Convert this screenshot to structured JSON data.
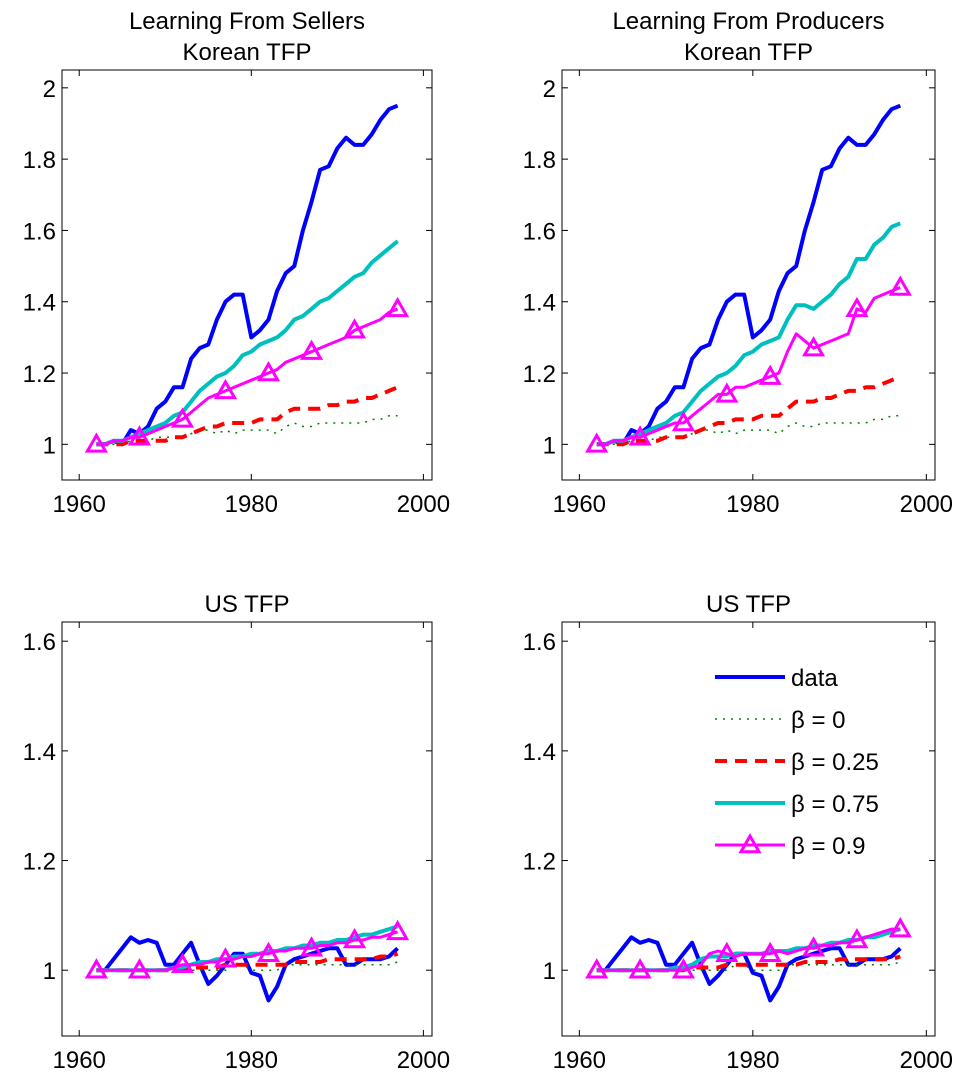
{
  "chart_data": [
    {
      "type": "line",
      "title": [
        "Learning From Sellers",
        "Korean TFP"
      ],
      "x": [
        1962,
        1963,
        1964,
        1965,
        1966,
        1967,
        1968,
        1969,
        1970,
        1971,
        1972,
        1973,
        1974,
        1975,
        1976,
        1977,
        1978,
        1979,
        1980,
        1981,
        1982,
        1983,
        1984,
        1985,
        1986,
        1987,
        1988,
        1989,
        1990,
        1991,
        1992,
        1993,
        1994,
        1995,
        1996,
        1997
      ],
      "xlim": [
        1958,
        2001
      ],
      "ylim": [
        0.9,
        2.05
      ],
      "xticks": [
        1960,
        1980,
        2000
      ],
      "yticks": [
        1,
        1.2,
        1.4,
        1.6,
        1.8,
        2
      ],
      "series": [
        {
          "color": "#0000ff",
          "style": "solid",
          "values": [
            1.0,
            1.0,
            1.01,
            1.0,
            1.04,
            1.03,
            1.05,
            1.1,
            1.12,
            1.16,
            1.16,
            1.24,
            1.27,
            1.28,
            1.35,
            1.4,
            1.42,
            1.42,
            1.3,
            1.32,
            1.35,
            1.43,
            1.48,
            1.5,
            1.6,
            1.68,
            1.77,
            1.78,
            1.83,
            1.86,
            1.84,
            1.84,
            1.87,
            1.91,
            1.94,
            1.95
          ]
        },
        {
          "color": "#008000",
          "style": "dotted",
          "values": [
            1.0,
            1.0,
            1.0,
            1.0,
            1.01,
            1.01,
            1.01,
            1.02,
            1.02,
            1.02,
            1.02,
            1.03,
            1.04,
            1.04,
            1.03,
            1.04,
            1.03,
            1.04,
            1.04,
            1.04,
            1.04,
            1.03,
            1.05,
            1.06,
            1.05,
            1.05,
            1.06,
            1.06,
            1.06,
            1.06,
            1.06,
            1.06,
            1.07,
            1.07,
            1.08,
            1.08
          ]
        },
        {
          "color": "#ff0000",
          "style": "dashed",
          "values": [
            1.0,
            1.0,
            1.0,
            1.0,
            1.01,
            1.01,
            1.01,
            1.01,
            1.01,
            1.02,
            1.02,
            1.03,
            1.04,
            1.05,
            1.05,
            1.06,
            1.06,
            1.06,
            1.06,
            1.07,
            1.07,
            1.07,
            1.09,
            1.1,
            1.1,
            1.1,
            1.1,
            1.11,
            1.11,
            1.12,
            1.12,
            1.13,
            1.13,
            1.14,
            1.15,
            1.16
          ]
        },
        {
          "color": "#00bfbf",
          "style": "solid",
          "values": [
            1.0,
            1.0,
            1.01,
            1.01,
            1.02,
            1.03,
            1.04,
            1.05,
            1.06,
            1.08,
            1.09,
            1.12,
            1.15,
            1.17,
            1.19,
            1.2,
            1.22,
            1.25,
            1.26,
            1.28,
            1.29,
            1.3,
            1.32,
            1.35,
            1.36,
            1.38,
            1.4,
            1.41,
            1.43,
            1.45,
            1.47,
            1.48,
            1.51,
            1.53,
            1.55,
            1.57
          ]
        },
        {
          "color": "#ff00ff",
          "style": "solid",
          "marker": "triangle",
          "markevery": 5,
          "values": [
            1.0,
            1.0,
            1.01,
            1.01,
            1.02,
            1.02,
            1.03,
            1.04,
            1.05,
            1.06,
            1.07,
            1.09,
            1.11,
            1.13,
            1.14,
            1.15,
            1.16,
            1.17,
            1.18,
            1.19,
            1.2,
            1.21,
            1.23,
            1.24,
            1.25,
            1.26,
            1.27,
            1.28,
            1.29,
            1.3,
            1.32,
            1.33,
            1.34,
            1.35,
            1.37,
            1.38
          ]
        }
      ]
    },
    {
      "type": "line",
      "title": [
        "Learning From Producers",
        "Korean TFP"
      ],
      "x": [
        1962,
        1963,
        1964,
        1965,
        1966,
        1967,
        1968,
        1969,
        1970,
        1971,
        1972,
        1973,
        1974,
        1975,
        1976,
        1977,
        1978,
        1979,
        1980,
        1981,
        1982,
        1983,
        1984,
        1985,
        1986,
        1987,
        1988,
        1989,
        1990,
        1991,
        1992,
        1993,
        1994,
        1995,
        1996,
        1997
      ],
      "xlim": [
        1958,
        2001
      ],
      "ylim": [
        0.9,
        2.05
      ],
      "xticks": [
        1960,
        1980,
        2000
      ],
      "yticks": [
        1,
        1.2,
        1.4,
        1.6,
        1.8,
        2
      ],
      "series": [
        {
          "color": "#0000ff",
          "style": "solid",
          "values": [
            1.0,
            1.0,
            1.01,
            1.0,
            1.04,
            1.03,
            1.05,
            1.1,
            1.12,
            1.16,
            1.16,
            1.24,
            1.27,
            1.28,
            1.35,
            1.4,
            1.42,
            1.42,
            1.3,
            1.32,
            1.35,
            1.43,
            1.48,
            1.5,
            1.6,
            1.68,
            1.77,
            1.78,
            1.83,
            1.86,
            1.84,
            1.84,
            1.87,
            1.91,
            1.94,
            1.95
          ]
        },
        {
          "color": "#008000",
          "style": "dotted",
          "values": [
            1.0,
            1.0,
            1.0,
            1.0,
            1.01,
            1.01,
            1.01,
            1.02,
            1.02,
            1.02,
            1.02,
            1.03,
            1.04,
            1.04,
            1.03,
            1.04,
            1.03,
            1.04,
            1.04,
            1.04,
            1.04,
            1.03,
            1.05,
            1.06,
            1.05,
            1.05,
            1.06,
            1.06,
            1.06,
            1.06,
            1.06,
            1.06,
            1.07,
            1.07,
            1.08,
            1.08
          ]
        },
        {
          "color": "#ff0000",
          "style": "dashed",
          "values": [
            1.0,
            1.0,
            1.0,
            1.0,
            1.01,
            1.01,
            1.01,
            1.01,
            1.02,
            1.02,
            1.02,
            1.03,
            1.04,
            1.05,
            1.06,
            1.06,
            1.07,
            1.07,
            1.07,
            1.08,
            1.08,
            1.08,
            1.1,
            1.12,
            1.12,
            1.12,
            1.13,
            1.13,
            1.14,
            1.15,
            1.15,
            1.16,
            1.16,
            1.17,
            1.18,
            1.19
          ]
        },
        {
          "color": "#00bfbf",
          "style": "solid",
          "values": [
            1.0,
            1.0,
            1.01,
            1.01,
            1.02,
            1.03,
            1.04,
            1.05,
            1.06,
            1.08,
            1.09,
            1.12,
            1.15,
            1.17,
            1.19,
            1.2,
            1.22,
            1.25,
            1.26,
            1.28,
            1.29,
            1.3,
            1.35,
            1.39,
            1.39,
            1.38,
            1.4,
            1.42,
            1.45,
            1.47,
            1.52,
            1.52,
            1.56,
            1.58,
            1.61,
            1.62
          ]
        },
        {
          "color": "#ff00ff",
          "style": "solid",
          "marker": "triangle",
          "markevery": 5,
          "values": [
            1.0,
            1.0,
            1.01,
            1.01,
            1.02,
            1.02,
            1.03,
            1.04,
            1.05,
            1.06,
            1.06,
            1.08,
            1.1,
            1.12,
            1.14,
            1.14,
            1.16,
            1.16,
            1.17,
            1.18,
            1.19,
            1.2,
            1.26,
            1.31,
            1.29,
            1.27,
            1.28,
            1.29,
            1.3,
            1.31,
            1.38,
            1.37,
            1.41,
            1.42,
            1.43,
            1.44
          ]
        }
      ]
    },
    {
      "type": "line",
      "title": [
        "US TFP"
      ],
      "x": [
        1962,
        1963,
        1964,
        1965,
        1966,
        1967,
        1968,
        1969,
        1970,
        1971,
        1972,
        1973,
        1974,
        1975,
        1976,
        1977,
        1978,
        1979,
        1980,
        1981,
        1982,
        1983,
        1984,
        1985,
        1986,
        1987,
        1988,
        1989,
        1990,
        1991,
        1992,
        1993,
        1994,
        1995,
        1996,
        1997
      ],
      "xlim": [
        1958,
        2001
      ],
      "ylim": [
        0.88,
        1.635
      ],
      "xticks": [
        1960,
        1980,
        2000
      ],
      "yticks": [
        1,
        1.2,
        1.4,
        1.6
      ],
      "series": [
        {
          "color": "#0000ff",
          "style": "solid",
          "values": [
            1.0,
            1.0,
            1.02,
            1.04,
            1.06,
            1.05,
            1.055,
            1.05,
            1.01,
            1.01,
            1.03,
            1.05,
            1.01,
            0.975,
            0.99,
            1.01,
            1.03,
            1.03,
            0.995,
            0.99,
            0.945,
            0.97,
            1.01,
            1.02,
            1.025,
            1.03,
            1.035,
            1.04,
            1.04,
            1.01,
            1.01,
            1.02,
            1.02,
            1.02,
            1.025,
            1.04
          ]
        },
        {
          "color": "#008000",
          "style": "dotted",
          "values": [
            1.0,
            1.0,
            1.0,
            1.0,
            1.0,
            1.0,
            1.0,
            1.0,
            1.0,
            1.0,
            1.0,
            1.0,
            1.0,
            1.0,
            1.0,
            1.0,
            1.01,
            1.01,
            1.0,
            1.0,
            1.0,
            1.0,
            1.01,
            1.01,
            1.01,
            1.01,
            1.01,
            1.01,
            1.01,
            1.01,
            1.01,
            1.01,
            1.01,
            1.01,
            1.01,
            1.015
          ]
        },
        {
          "color": "#ff0000",
          "style": "dashed",
          "values": [
            1.0,
            1.0,
            1.0,
            1.0,
            1.0,
            1.0,
            1.0,
            1.0,
            1.0,
            1.0,
            1.0,
            1.005,
            1.005,
            1.005,
            1.005,
            1.01,
            1.01,
            1.01,
            1.01,
            1.01,
            1.01,
            1.01,
            1.01,
            1.015,
            1.015,
            1.015,
            1.015,
            1.02,
            1.02,
            1.02,
            1.02,
            1.02,
            1.02,
            1.025,
            1.025,
            1.03
          ]
        },
        {
          "color": "#00bfbf",
          "style": "solid",
          "values": [
            1.0,
            1.0,
            1.0,
            1.0,
            1.0,
            1.0,
            1.0,
            1.0,
            1.0,
            1.005,
            1.005,
            1.01,
            1.015,
            1.015,
            1.02,
            1.02,
            1.025,
            1.025,
            1.03,
            1.03,
            1.035,
            1.035,
            1.04,
            1.04,
            1.045,
            1.045,
            1.05,
            1.05,
            1.055,
            1.055,
            1.06,
            1.065,
            1.065,
            1.07,
            1.075,
            1.08
          ]
        },
        {
          "color": "#ff00ff",
          "style": "solid",
          "marker": "triangle",
          "markevery": 5,
          "values": [
            1.0,
            1.0,
            1.0,
            1.0,
            1.0,
            1.0,
            1.0,
            1.0,
            1.0,
            1.005,
            1.01,
            1.01,
            1.01,
            1.015,
            1.015,
            1.02,
            1.02,
            1.025,
            1.025,
            1.03,
            1.03,
            1.035,
            1.035,
            1.04,
            1.04,
            1.04,
            1.045,
            1.045,
            1.05,
            1.05,
            1.055,
            1.055,
            1.06,
            1.06,
            1.065,
            1.07
          ]
        }
      ]
    },
    {
      "type": "line",
      "title": [
        "US TFP"
      ],
      "x": [
        1962,
        1963,
        1964,
        1965,
        1966,
        1967,
        1968,
        1969,
        1970,
        1971,
        1972,
        1973,
        1974,
        1975,
        1976,
        1977,
        1978,
        1979,
        1980,
        1981,
        1982,
        1983,
        1984,
        1985,
        1986,
        1987,
        1988,
        1989,
        1990,
        1991,
        1992,
        1993,
        1994,
        1995,
        1996,
        1997
      ],
      "xlim": [
        1958,
        2001
      ],
      "ylim": [
        0.88,
        1.635
      ],
      "xticks": [
        1960,
        1980,
        2000
      ],
      "yticks": [
        1,
        1.2,
        1.4,
        1.6
      ],
      "legend": "northeast",
      "series": [
        {
          "name": "data",
          "color": "#0000ff",
          "style": "solid",
          "values": [
            1.0,
            1.0,
            1.02,
            1.04,
            1.06,
            1.05,
            1.055,
            1.05,
            1.01,
            1.01,
            1.03,
            1.05,
            1.01,
            0.975,
            0.99,
            1.01,
            1.03,
            1.03,
            0.995,
            0.99,
            0.945,
            0.97,
            1.01,
            1.02,
            1.025,
            1.03,
            1.035,
            1.04,
            1.04,
            1.01,
            1.01,
            1.02,
            1.02,
            1.02,
            1.025,
            1.04
          ]
        },
        {
          "name": "β = 0",
          "color": "#008000",
          "style": "dotted",
          "values": [
            1.0,
            1.0,
            1.0,
            1.0,
            1.0,
            1.0,
            1.0,
            1.0,
            1.0,
            1.0,
            1.0,
            1.0,
            1.0,
            1.0,
            1.0,
            1.0,
            1.01,
            1.01,
            1.0,
            1.0,
            1.0,
            1.0,
            1.01,
            1.01,
            1.01,
            1.01,
            1.01,
            1.01,
            1.01,
            1.01,
            1.01,
            1.01,
            1.01,
            1.01,
            1.01,
            1.015
          ]
        },
        {
          "name": "β = 0.25",
          "color": "#ff0000",
          "style": "dashed",
          "values": [
            1.0,
            1.0,
            1.0,
            1.0,
            1.0,
            1.0,
            1.0,
            1.0,
            1.0,
            1.0,
            1.0,
            1.005,
            1.005,
            1.005,
            1.005,
            1.01,
            1.01,
            1.01,
            1.01,
            1.01,
            1.01,
            1.01,
            1.01,
            1.01,
            1.015,
            1.015,
            1.015,
            1.015,
            1.02,
            1.02,
            1.02,
            1.02,
            1.02,
            1.02,
            1.02,
            1.025
          ]
        },
        {
          "name": "β = 0.75",
          "color": "#00bfbf",
          "style": "solid",
          "values": [
            1.0,
            1.0,
            1.0,
            1.0,
            1.0,
            1.0,
            1.0,
            1.0,
            1.0,
            1.005,
            1.005,
            1.01,
            1.02,
            1.025,
            1.025,
            1.025,
            1.03,
            1.03,
            1.03,
            1.03,
            1.035,
            1.035,
            1.035,
            1.04,
            1.04,
            1.045,
            1.045,
            1.05,
            1.05,
            1.055,
            1.055,
            1.06,
            1.06,
            1.065,
            1.07,
            1.075
          ]
        },
        {
          "name": "β = 0.9",
          "color": "#ff00ff",
          "style": "solid",
          "marker": "triangle",
          "markevery": 5,
          "values": [
            1.0,
            1.0,
            1.0,
            1.0,
            1.0,
            1.0,
            1.0,
            1.0,
            1.0,
            1.0,
            1.0,
            1.005,
            1.01,
            1.03,
            1.035,
            1.03,
            1.025,
            1.03,
            1.03,
            1.03,
            1.03,
            1.035,
            1.03,
            1.035,
            1.04,
            1.04,
            1.045,
            1.045,
            1.05,
            1.05,
            1.055,
            1.06,
            1.065,
            1.07,
            1.075,
            1.075
          ]
        }
      ]
    }
  ]
}
